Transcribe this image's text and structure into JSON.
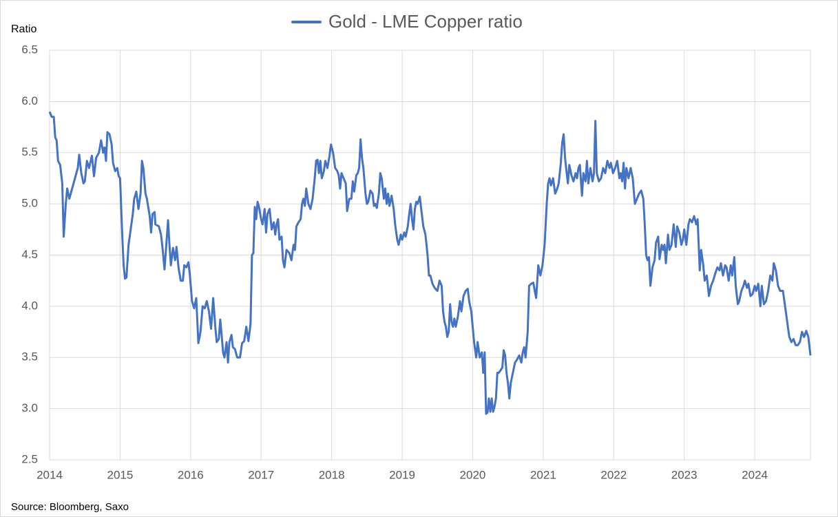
{
  "chart_data": {
    "type": "line",
    "y_label": "Ratio",
    "source": "Source: Bloomberg, Saxo",
    "xlim": [
      2014,
      2024.79
    ],
    "xticks": [
      2014,
      2015,
      2016,
      2017,
      2018,
      2019,
      2020,
      2021,
      2022,
      2023,
      2024
    ],
    "ylim": [
      2.5,
      6.5
    ],
    "yticks": [
      {
        "value": 2.5,
        "label": "2.5"
      },
      {
        "value": 3,
        "label": "3.0"
      },
      {
        "value": 3.5,
        "label": "3.5"
      },
      {
        "value": 4,
        "label": "4.0"
      },
      {
        "value": 4.5,
        "label": "4.5"
      },
      {
        "value": 5,
        "label": "5.0"
      },
      {
        "value": 5.5,
        "label": "5.5"
      },
      {
        "value": 6,
        "label": "6.0"
      },
      {
        "value": 6.5,
        "label": "6.5"
      }
    ],
    "grid": true,
    "legend": "top",
    "x": [
      2014.0,
      2014.03,
      2014.06,
      2014.08,
      2014.1,
      2014.12,
      2014.15,
      2014.18,
      2014.2,
      2014.23,
      2014.25,
      2014.28,
      2014.32,
      2014.36,
      2014.4,
      2014.42,
      2014.45,
      2014.48,
      2014.5,
      2014.53,
      2014.56,
      2014.6,
      2014.63,
      2014.66,
      2014.7,
      2014.73,
      2014.76,
      2014.78,
      2014.8,
      2014.82,
      2014.85,
      2014.88,
      2014.9,
      2014.93,
      2014.96,
      2014.98,
      2015.0,
      2015.03,
      2015.05,
      2015.07,
      2015.09,
      2015.12,
      2015.15,
      2015.18,
      2015.2,
      2015.23,
      2015.26,
      2015.29,
      2015.31,
      2015.33,
      2015.36,
      2015.38,
      2015.42,
      2015.44,
      2015.46,
      2015.49,
      2015.5,
      2015.55,
      2015.58,
      2015.6,
      2015.63,
      2015.65,
      2015.68,
      2015.7,
      2015.72,
      2015.75,
      2015.78,
      2015.8,
      2015.83,
      2015.86,
      2015.89,
      2015.91,
      2015.94,
      2015.97,
      2015.99,
      2016.02,
      2016.05,
      2016.08,
      2016.11,
      2016.14,
      2016.17,
      2016.2,
      2016.23,
      2016.26,
      2016.29,
      2016.32,
      2016.35,
      2016.37,
      2016.4,
      2016.42,
      2016.44,
      2016.46,
      2016.48,
      2016.51,
      2016.53,
      2016.55,
      2016.58,
      2016.6,
      2016.63,
      2016.66,
      2016.7,
      2016.73,
      2016.76,
      2016.79,
      2016.82,
      2016.85,
      2016.87,
      2016.89,
      2016.91,
      2016.93,
      2016.95,
      2016.97,
      2017.0,
      2017.02,
      2017.05,
      2017.07,
      2017.09,
      2017.12,
      2017.15,
      2017.18,
      2017.2,
      2017.22,
      2017.24,
      2017.26,
      2017.29,
      2017.31,
      2017.33,
      2017.36,
      2017.4,
      2017.43,
      2017.46,
      2017.48,
      2017.5,
      2017.53,
      2017.56,
      2017.58,
      2017.6,
      2017.62,
      2017.64,
      2017.67,
      2017.7,
      2017.73,
      2017.76,
      2017.78,
      2017.8,
      2017.82,
      2017.84,
      2017.86,
      2017.89,
      2017.91,
      2017.94,
      2017.97,
      2017.99,
      2018.02,
      2018.05,
      2018.08,
      2018.1,
      2018.12,
      2018.14,
      2018.17,
      2018.2,
      2018.22,
      2018.25,
      2018.28,
      2018.3,
      2018.32,
      2018.35,
      2018.37,
      2018.39,
      2018.41,
      2018.43,
      2018.45,
      2018.48,
      2018.5,
      2018.52,
      2018.55,
      2018.58,
      2018.6,
      2018.62,
      2018.64,
      2018.67,
      2018.69,
      2018.71,
      2018.74,
      2018.76,
      2018.78,
      2018.8,
      2018.82,
      2018.85,
      2018.88,
      2018.9,
      2018.93,
      2018.95,
      2018.98,
      2019.0,
      2019.03,
      2019.05,
      2019.08,
      2019.1,
      2019.12,
      2019.14,
      2019.16,
      2019.18,
      2019.2,
      2019.22,
      2019.25,
      2019.27,
      2019.3,
      2019.33,
      2019.36,
      2019.38,
      2019.4,
      2019.43,
      2019.46,
      2019.5,
      2019.53,
      2019.56,
      2019.58,
      2019.6,
      2019.62,
      2019.64,
      2019.66,
      2019.68,
      2019.7,
      2019.72,
      2019.74,
      2019.76,
      2019.79,
      2019.82,
      2019.84,
      2019.87,
      2019.9,
      2019.93,
      2019.95,
      2019.98,
      2020.02,
      2020.05,
      2020.07,
      2020.1,
      2020.13,
      2020.15,
      2020.17,
      2020.19,
      2020.21,
      2020.23,
      2020.25,
      2020.27,
      2020.29,
      2020.31,
      2020.33,
      2020.35,
      2020.37,
      2020.39,
      2020.42,
      2020.44,
      2020.46,
      2020.48,
      2020.5,
      2020.52,
      2020.54,
      2020.57,
      2020.6,
      2020.63,
      2020.66,
      2020.69,
      2020.71,
      2020.73,
      2020.75,
      2020.78,
      2020.8,
      2020.83,
      2020.86,
      2020.88,
      2020.9,
      2020.93,
      2020.96,
      2020.99,
      2021.02,
      2021.05,
      2021.07,
      2021.09,
      2021.11,
      2021.14,
      2021.17,
      2021.2,
      2021.22,
      2021.25,
      2021.27,
      2021.29,
      2021.31,
      2021.33,
      2021.35,
      2021.37,
      2021.4,
      2021.43,
      2021.46,
      2021.48,
      2021.5,
      2021.52,
      2021.55,
      2021.57,
      2021.6,
      2021.62,
      2021.64,
      2021.67,
      2021.7,
      2021.72,
      2021.74,
      2021.76,
      2021.79,
      2021.82,
      2021.85,
      2021.88,
      2021.91,
      2021.94,
      2021.96,
      2021.99,
      2022.02,
      2022.05,
      2022.08,
      2022.1,
      2022.12,
      2022.14,
      2022.16,
      2022.18,
      2022.21,
      2022.24,
      2022.27,
      2022.3,
      2022.33,
      2022.36,
      2022.39,
      2022.42,
      2022.44,
      2022.46,
      2022.48,
      2022.5,
      2022.52,
      2022.55,
      2022.58,
      2022.6,
      2022.63,
      2022.65,
      2022.68,
      2022.7,
      2022.72,
      2022.74,
      2022.77,
      2022.79,
      2022.82,
      2022.85,
      2022.88,
      2022.9,
      2022.93,
      2022.96,
      2022.98,
      2023.0,
      2023.03,
      2023.06,
      2023.08,
      2023.11,
      2023.14,
      2023.17,
      2023.19,
      2023.22,
      2023.24,
      2023.27,
      2023.29,
      2023.32,
      2023.35,
      2023.38,
      2023.41,
      2023.44,
      2023.47,
      2023.5,
      2023.52,
      2023.55,
      2023.58,
      2023.6,
      2023.63,
      2023.66,
      2023.68,
      2023.71,
      2023.73,
      2023.76,
      2023.78,
      2023.81,
      2023.84,
      2023.86,
      2023.89,
      2023.91,
      2023.94,
      2023.97,
      2024.0,
      2024.02,
      2024.05,
      2024.08,
      2024.1,
      2024.13,
      2024.16,
      2024.19,
      2024.22,
      2024.25,
      2024.27,
      2024.3,
      2024.33,
      2024.36,
      2024.4,
      2024.43,
      2024.46,
      2024.49,
      2024.52,
      2024.55,
      2024.58,
      2024.61,
      2024.64,
      2024.67,
      2024.7,
      2024.73,
      2024.76,
      2024.79
    ],
    "series": [
      {
        "name": "Gold - LME Copper ratio",
        "color": "#4472c4",
        "values": [
          5.9,
          5.85,
          5.85,
          5.65,
          5.62,
          5.42,
          5.38,
          5.2,
          4.68,
          5.0,
          5.15,
          5.05,
          5.15,
          5.25,
          5.35,
          5.48,
          5.3,
          5.2,
          5.22,
          5.42,
          5.35,
          5.47,
          5.27,
          5.45,
          5.5,
          5.62,
          5.5,
          5.55,
          5.42,
          5.7,
          5.68,
          5.58,
          5.4,
          5.32,
          5.35,
          5.27,
          5.25,
          4.7,
          4.4,
          4.27,
          4.28,
          4.6,
          4.75,
          4.9,
          5.05,
          5.12,
          4.95,
          5.1,
          5.42,
          5.35,
          5.1,
          5.05,
          4.88,
          4.72,
          4.9,
          4.92,
          4.8,
          4.78,
          4.7,
          4.58,
          4.36,
          4.55,
          4.84,
          4.6,
          4.4,
          4.57,
          4.45,
          4.58,
          4.37,
          4.25,
          4.25,
          4.4,
          4.38,
          4.43,
          4.3,
          4.05,
          3.98,
          4.08,
          3.64,
          3.75,
          4.0,
          3.98,
          4.05,
          3.95,
          3.78,
          4.08,
          3.8,
          3.65,
          3.68,
          3.87,
          3.72,
          3.55,
          3.5,
          3.65,
          3.45,
          3.65,
          3.72,
          3.6,
          3.58,
          3.5,
          3.5,
          3.64,
          3.66,
          3.8,
          3.66,
          3.83,
          4.5,
          4.52,
          4.97,
          4.85,
          5.02,
          4.97,
          4.85,
          4.8,
          4.95,
          4.72,
          4.9,
          4.95,
          4.75,
          4.82,
          4.7,
          4.8,
          4.85,
          4.65,
          4.68,
          4.45,
          4.38,
          4.55,
          4.52,
          4.45,
          4.6,
          4.55,
          4.78,
          4.82,
          4.85,
          5.0,
          5.05,
          4.98,
          5.15,
          5.0,
          4.95,
          5.05,
          5.25,
          5.42,
          5.43,
          5.3,
          5.42,
          5.25,
          5.32,
          5.42,
          5.35,
          5.47,
          5.58,
          5.5,
          5.35,
          5.32,
          5.28,
          5.15,
          5.3,
          5.25,
          5.2,
          4.93,
          5.05,
          5.05,
          5.22,
          5.12,
          5.28,
          5.3,
          5.35,
          5.63,
          5.45,
          5.35,
          5.1,
          5.0,
          5.02,
          5.13,
          5.1,
          4.98,
          5.0,
          4.96,
          5.1,
          5.3,
          5.25,
          5.05,
          5.15,
          5.0,
          5.1,
          4.98,
          5.08,
          4.95,
          4.8,
          4.65,
          4.6,
          4.7,
          4.65,
          4.72,
          4.68,
          4.78,
          4.9,
          5.0,
          4.85,
          4.75,
          4.95,
          5.02,
          5.0,
          5.07,
          4.95,
          4.78,
          4.7,
          4.5,
          4.3,
          4.3,
          4.22,
          4.18,
          4.15,
          4.25,
          4.2,
          3.95,
          3.85,
          3.8,
          3.7,
          3.75,
          4.02,
          3.85,
          3.8,
          3.88,
          3.8,
          3.9,
          4.05,
          3.95,
          4.1,
          4.15,
          4.17,
          4.05,
          3.95,
          3.65,
          3.5,
          3.65,
          3.5,
          3.55,
          3.35,
          3.55,
          2.95,
          2.96,
          3.1,
          2.97,
          3.1,
          2.97,
          3.02,
          3.1,
          3.35,
          3.35,
          3.37,
          3.4,
          3.57,
          3.52,
          3.35,
          3.25,
          3.1,
          3.25,
          3.35,
          3.45,
          3.48,
          3.52,
          3.45,
          3.55,
          3.6,
          3.5,
          3.75,
          4.2,
          4.22,
          4.23,
          4.15,
          4.08,
          4.4,
          4.3,
          4.4,
          4.6,
          5.0,
          5.2,
          5.25,
          5.18,
          5.25,
          5.1,
          5.15,
          5.2,
          5.4,
          5.6,
          5.68,
          5.45,
          5.32,
          5.2,
          5.38,
          5.28,
          5.22,
          5.3,
          5.25,
          5.35,
          5.38,
          5.08,
          5.3,
          5.22,
          5.42,
          5.2,
          5.35,
          5.22,
          5.3,
          5.81,
          5.3,
          5.22,
          5.25,
          5.35,
          5.3,
          5.42,
          5.35,
          5.4,
          5.3,
          5.35,
          5.42,
          5.25,
          5.3,
          5.22,
          5.4,
          5.15,
          5.35,
          5.25,
          5.35,
          5.25,
          5.0,
          5.05,
          5.1,
          5.13,
          5.05,
          4.8,
          4.5,
          4.45,
          4.48,
          4.2,
          4.38,
          4.45,
          4.62,
          4.68,
          4.46,
          4.6,
          4.55,
          4.6,
          4.42,
          4.7,
          4.55,
          4.6,
          4.8,
          4.58,
          4.78,
          4.72,
          4.6,
          4.65,
          4.75,
          4.6,
          4.8,
          4.85,
          4.82,
          4.88,
          4.8,
          4.85,
          4.35,
          4.55,
          4.4,
          4.25,
          4.3,
          4.1,
          4.2,
          4.25,
          4.32,
          4.38,
          4.35,
          4.42,
          4.3,
          4.4,
          4.38,
          4.25,
          4.4,
          4.3,
          4.48,
          4.2,
          4.02,
          4.05,
          4.15,
          4.2,
          4.25,
          4.18,
          4.22,
          4.1,
          4.12,
          4.2,
          4.15,
          4.22,
          4.0,
          4.2,
          4.02,
          4.05,
          4.15,
          4.3,
          4.25,
          4.42,
          4.35,
          4.2,
          4.15,
          4.15,
          4.0,
          3.85,
          3.7,
          3.65,
          3.68,
          3.62,
          3.62,
          3.65,
          3.75,
          3.7,
          3.76,
          3.7,
          3.52
        ]
      }
    ]
  }
}
